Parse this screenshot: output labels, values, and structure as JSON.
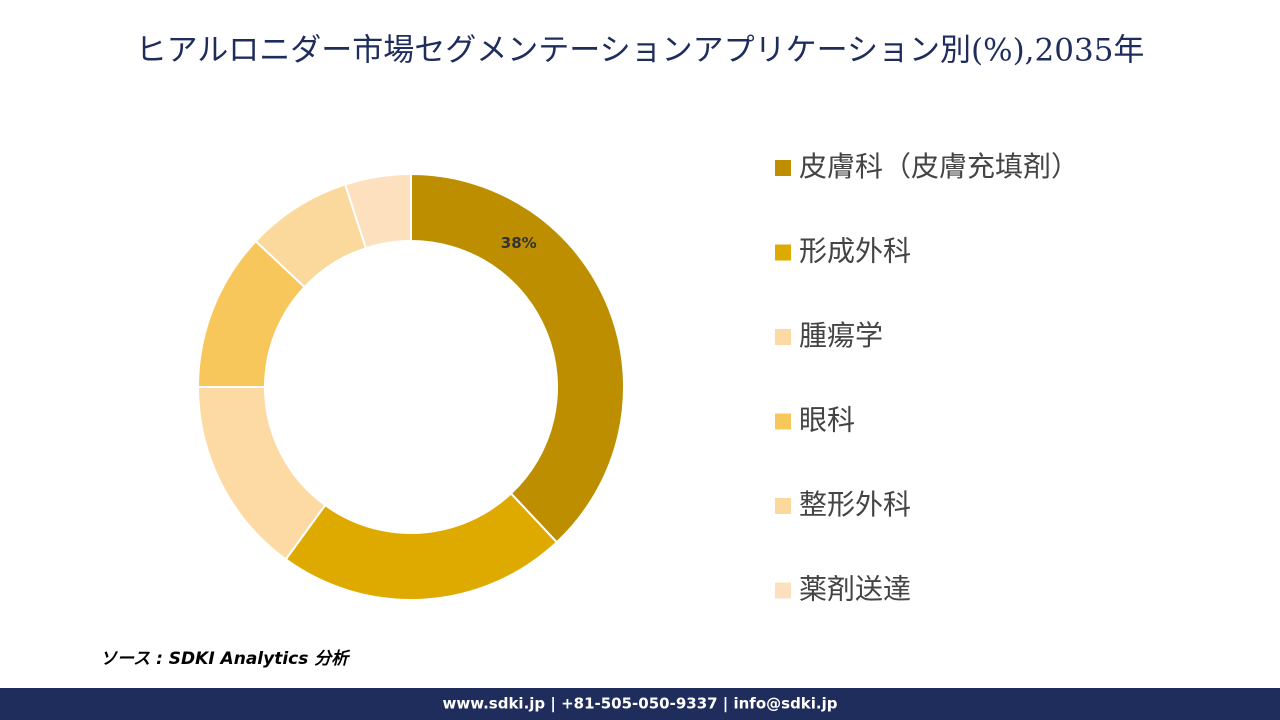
{
  "chart_data": {
    "type": "donut",
    "title": "ヒアルロニダー市場セグメンテーションアプリケーション別(%),2035年",
    "categories": [
      "皮膚科（皮膚充填剤）",
      "形成外科",
      "腫瘍学",
      "眼科",
      "整形外科",
      "薬剤送達"
    ],
    "values": [
      38,
      22,
      15,
      12,
      8,
      5
    ],
    "value_labels": [
      "38%",
      null,
      null,
      null,
      null,
      null
    ],
    "colors": [
      "#bd8f00",
      "#dfaa00",
      "#fddaa4",
      "#f8c75b",
      "#fbd89b",
      "#fde1bf"
    ],
    "legend": "right"
  },
  "source": "ソース : SDKI Analytics 分析",
  "footer": "www.sdki.jp | +81-505-050-9337 | info@sdki.jp"
}
